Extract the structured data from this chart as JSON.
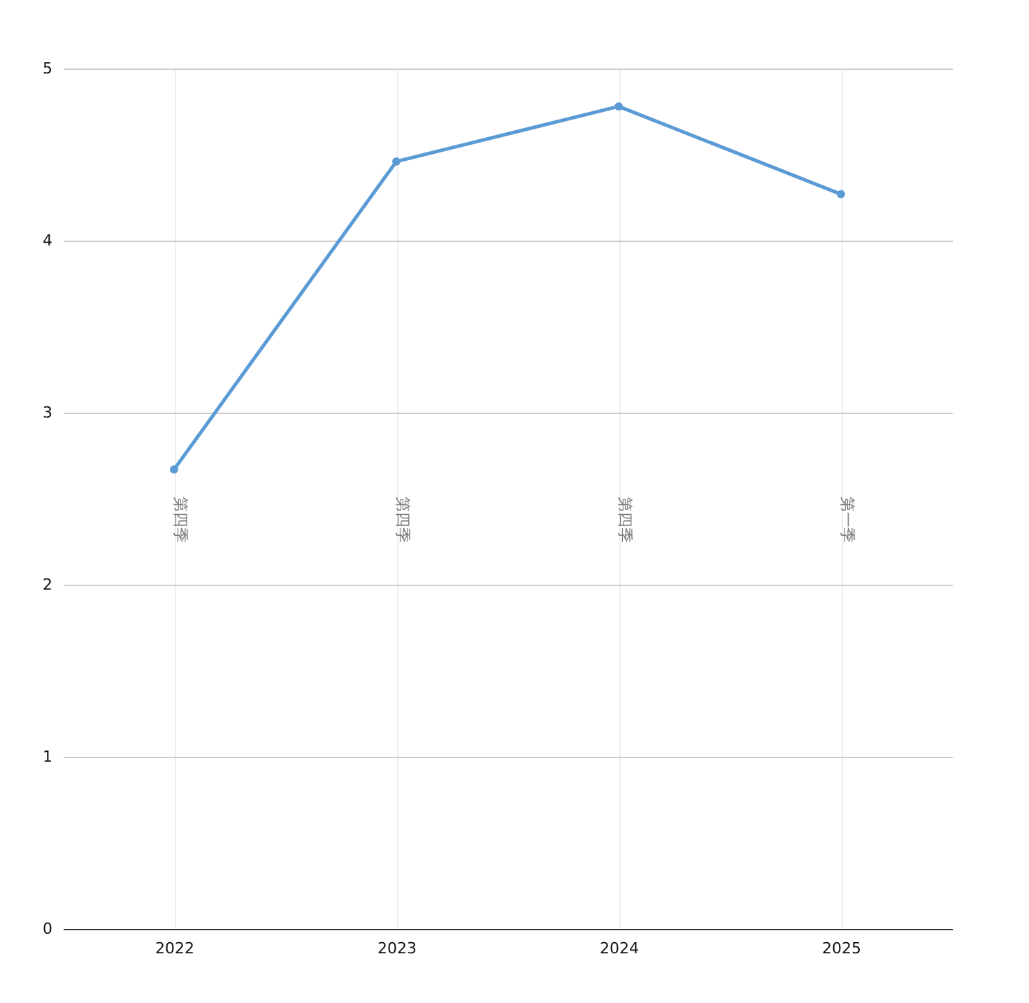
{
  "chart_data": {
    "type": "line",
    "categories": [
      "2022",
      "2023",
      "2024",
      "2025"
    ],
    "series": [
      {
        "color": "#5b9bd5",
        "values": [
          2.67,
          4.46,
          4.78,
          4.27
        ]
      }
    ],
    "ylim": [
      0,
      5
    ],
    "yticks": [
      0,
      1,
      2,
      3,
      4,
      5
    ],
    "grid": true,
    "marker": "circle",
    "line_style": "solid",
    "annotations": [
      "第四季",
      "第四季",
      "第四季",
      "第一季"
    ]
  }
}
